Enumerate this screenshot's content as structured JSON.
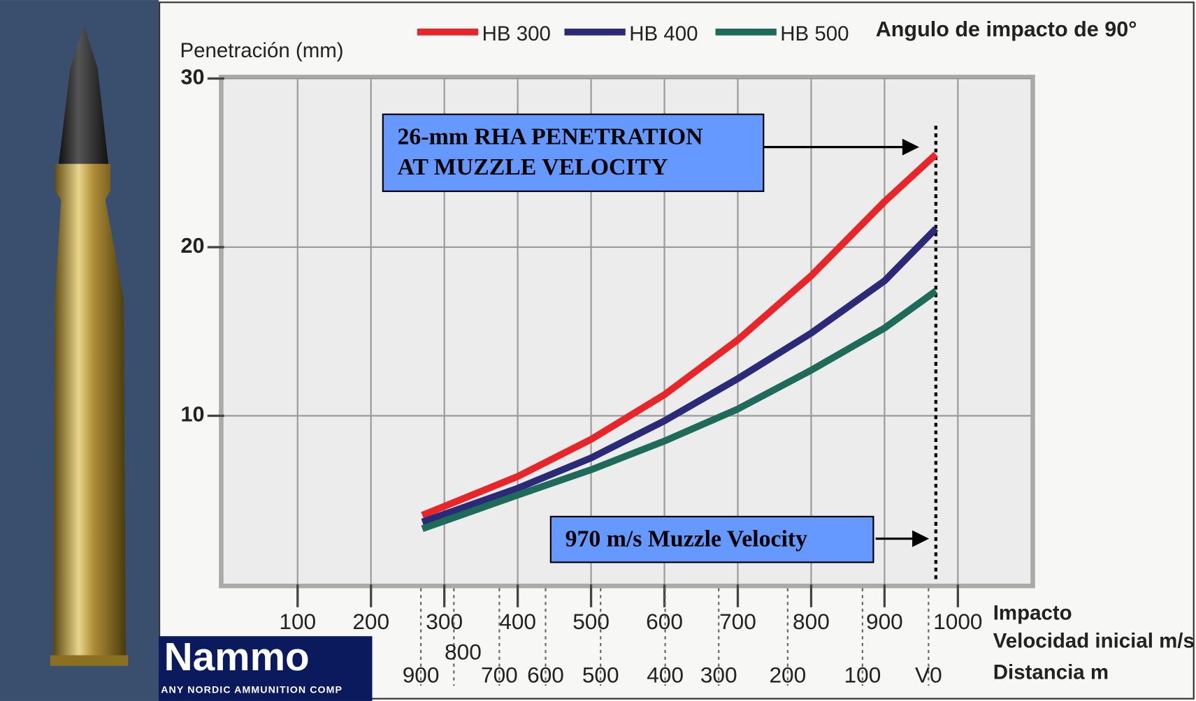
{
  "chart_data": {
    "type": "line",
    "title": "Angulo de impacto de 90°",
    "y_label": "Penetración (mm)",
    "x_label": "Impacto",
    "x_sublabel": "Velocidad inicial m/s",
    "x": [
      270,
      400,
      500,
      600,
      700,
      800,
      900,
      970
    ],
    "series": [
      {
        "name": "HB 300",
        "color": "#e8262a",
        "values": [
          4.1,
          6.4,
          8.6,
          11.25,
          14.5,
          18.3,
          22.7,
          25.5
        ]
      },
      {
        "name": "HB 400",
        "color": "#2b2a78",
        "values": [
          3.7,
          5.7,
          7.5,
          9.7,
          12.2,
          14.9,
          18.0,
          21.1
        ]
      },
      {
        "name": "HB 500",
        "color": "#1f6b5a",
        "values": [
          3.3,
          5.3,
          6.8,
          8.5,
          10.4,
          12.7,
          15.2,
          17.4
        ]
      }
    ],
    "xlim": [
      0,
      1100
    ],
    "xticks": [
      100,
      200,
      300,
      400,
      500,
      600,
      700,
      800,
      900,
      1000
    ],
    "ylim": [
      0,
      30
    ],
    "yticks": [
      10,
      20,
      30
    ],
    "grid": true,
    "distance_axis": {
      "label": "Distancia m",
      "ticks": [
        {
          "distance": 900,
          "velocity": 268
        },
        {
          "distance": 800,
          "velocity": 313
        },
        {
          "distance": 700,
          "velocity": 375
        },
        {
          "distance": 600,
          "velocity": 438
        },
        {
          "distance": 500,
          "velocity": 513
        },
        {
          "distance": 400,
          "velocity": 601
        },
        {
          "distance": 300,
          "velocity": 674
        },
        {
          "distance": 200,
          "velocity": 768
        },
        {
          "distance": 100,
          "velocity": 870
        },
        {
          "distance": {
            "value": 0,
            "label": "V0"
          },
          "velocity": 960
        }
      ]
    },
    "reference_x": 970,
    "annotations": [
      {
        "lines": [
          "26-mm RHA PENETRATION",
          "AT MUZZLE VELOCITY"
        ]
      },
      {
        "lines": [
          "970 m/s Muzzle Velocity"
        ]
      }
    ]
  },
  "logo": {
    "mark": "Nammo",
    "tagline": "ANY NORDIC AMMUNITION COMP"
  }
}
